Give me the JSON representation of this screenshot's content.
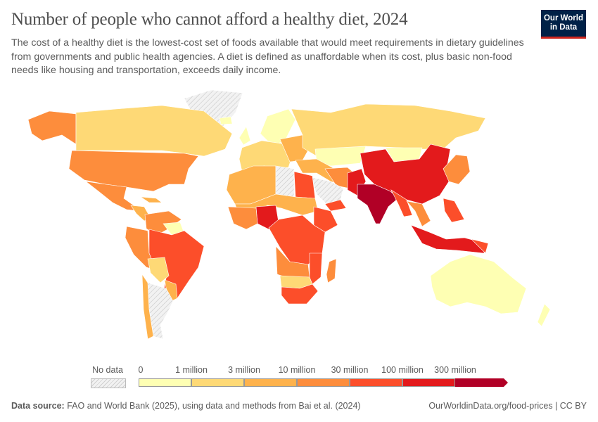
{
  "header": {
    "title": "Number of people who cannot afford a healthy diet, 2024",
    "subtitle": "The cost of a healthy diet is the lowest-cost set of foods available that would meet requirements in dietary guidelines from governments and public health agencies. A diet is defined as unaffordable when its cost, plus basic non-food needs like housing and transportation, exceeds daily income.",
    "logo_line1": "Our World",
    "logo_line2": "in Data"
  },
  "legend": {
    "no_data_label": "No data",
    "thresholds": [
      "0",
      "1 million",
      "3 million",
      "10 million",
      "30 million",
      "100 million",
      "300 million"
    ],
    "colors": [
      "#feffb3",
      "#fed976",
      "#feb24c",
      "#fd8d3c",
      "#fc4e2a",
      "#e31a1c",
      "#b10026"
    ],
    "no_data_color": "#e8e8e8"
  },
  "footer": {
    "source_label": "Data source:",
    "source_text": "FAO and World Bank (2025), using data and methods from Bai et al. (2024)",
    "url_license": "OurWorldinData.org/food-prices | CC BY"
  }
}
